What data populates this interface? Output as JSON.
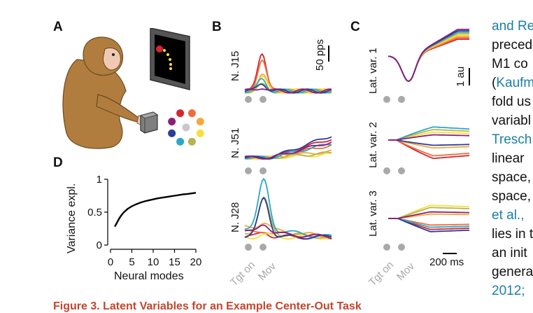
{
  "panels": {
    "a": "A",
    "b": "B",
    "c": "C",
    "d": "D"
  },
  "panel_b": {
    "scale_label": "50 pps",
    "rows": [
      {
        "label": "N. J15"
      },
      {
        "label": "N. J51"
      },
      {
        "label": "N. J28"
      }
    ],
    "events": [
      "Tgt on",
      "Mov"
    ]
  },
  "panel_c": {
    "scale_label": "1 au",
    "time_scale_label": "200 ms",
    "rows": [
      {
        "label": "Lat. var. 1"
      },
      {
        "label": "Lat. var. 2"
      },
      {
        "label": "Lat. var. 3"
      }
    ],
    "events": [
      "Tgt on",
      "Mov"
    ]
  },
  "chart_data": {
    "type": "line",
    "title": "",
    "xlabel": "Neural modes",
    "ylabel": "Variance expl.",
    "xlim": [
      0,
      20
    ],
    "ylim": [
      0,
      1
    ],
    "xticks": [
      "0",
      "5",
      "10",
      "15",
      "20"
    ],
    "yticks": [
      "0",
      "0.5",
      "1"
    ],
    "series": [
      {
        "x": [
          1,
          1.5,
          2,
          2.5,
          3,
          3.5,
          4,
          5,
          6,
          7,
          8,
          9,
          10,
          11,
          12,
          13,
          14,
          15,
          16,
          17,
          18,
          19,
          20
        ],
        "values": [
          0.28,
          0.34,
          0.4,
          0.45,
          0.49,
          0.52,
          0.55,
          0.59,
          0.62,
          0.645,
          0.665,
          0.68,
          0.695,
          0.71,
          0.72,
          0.73,
          0.74,
          0.75,
          0.76,
          0.77,
          0.775,
          0.785,
          0.795
        ]
      }
    ]
  },
  "text_column": {
    "lines": [
      {
        "text": "and Re",
        "color": "link"
      },
      {
        "text": "preced",
        "color": "plain"
      },
      {
        "text": "M1 co",
        "color": "plain"
      },
      {
        "text": "(Kaufm",
        "color": "mixed"
      },
      {
        "text": "fold us",
        "color": "plain"
      },
      {
        "text": "variabl",
        "color": "plain"
      },
      {
        "text": "Tresch",
        "color": "link"
      },
      {
        "text": "linear",
        "color": "plain"
      },
      {
        "text": "space,",
        "color": "plain"
      },
      {
        "text": "space,",
        "color": "plain"
      },
      {
        "text": "et al.,",
        "color": "link"
      },
      {
        "text": "lies in t",
        "color": "plain"
      },
      {
        "text": "an init",
        "color": "plain"
      },
      {
        "text": "genera",
        "color": "plain"
      },
      {
        "text": "2012;",
        "color": "link"
      }
    ]
  },
  "caption": {
    "text": "Figure 3. Latent Variables for an Example Center-Out Task"
  },
  "colors": {
    "condition_colors": [
      "#d7242d",
      "#ee6c3a",
      "#f3a93a",
      "#f5e03a",
      "#b7b34f",
      "#29a8c6",
      "#2a3d9a",
      "#8b1f7a",
      "#c8c8c8"
    ],
    "monkey_fur": "#b07d3e",
    "link": "#1a7fa8",
    "caption": "#c4452c",
    "event_marker": "#a9a9a9"
  }
}
